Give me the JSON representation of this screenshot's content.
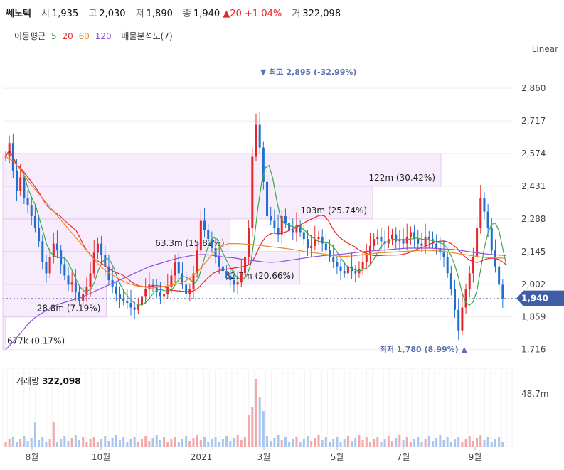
{
  "header": {
    "name": "쎄노텍",
    "open_label": "시",
    "open": "1,935",
    "high_label": "고",
    "high": "2,030",
    "low_label": "저",
    "low": "1,890",
    "close_label": "종",
    "close": "1,940",
    "change_arrow": "▲",
    "change": "20",
    "change_pct": "+1.04%",
    "volume_label": "거",
    "volume": "322,098"
  },
  "ma_legend": {
    "label": "이동평균",
    "periods": [
      "5",
      "20",
      "60",
      "120"
    ],
    "colors": [
      "#3aa84a",
      "#e8262a",
      "#f08a24",
      "#8a4fe0"
    ],
    "volume_profile": "매물분석도(7)"
  },
  "scale_mode": "Linear",
  "colors": {
    "up": "#e8262a",
    "down": "#1f6fd1",
    "profile": "#f3e6fa",
    "current_price_tag": "#3e5ea8"
  },
  "chart_data": {
    "type": "candlestick",
    "y_ticks": [
      2860,
      2717,
      2574,
      2431,
      2288,
      2145,
      2002,
      1859,
      1716
    ],
    "y_tick_labels": [
      "2,860",
      "2,717",
      "2,574",
      "2,431",
      "2,288",
      "2,145",
      "2,002",
      "1,859",
      "1,716"
    ],
    "ylim": [
      1690,
      2960
    ],
    "x_tick_labels": [
      "8월",
      "10월",
      "2021",
      "3월",
      "5월",
      "7월",
      "9월"
    ],
    "current_price": "1,940",
    "current_price_value": 1940,
    "high_annotation": "▼ 최고 2,895 (-32.99%)",
    "high_value": 2895,
    "low_annotation": "최저 1,780 (8.99%) ▲",
    "low_value": 1780,
    "volume_profile": [
      {
        "label": "677k (0.17%)",
        "from": 1716,
        "to": 1859,
        "volume_m": 0.677
      },
      {
        "label": "28.8m (7.19%)",
        "from": 1859,
        "to": 2002,
        "volume_m": 28.8
      },
      {
        "label": "82.7m (20.66%)",
        "from": 2002,
        "to": 2145,
        "volume_m": 82.7
      },
      {
        "label": "63.3m (15.82%)",
        "from": 2145,
        "to": 2288,
        "volume_m": 63.3
      },
      {
        "label": "103m (25.74%)",
        "from": 2288,
        "to": 2431,
        "volume_m": 103
      },
      {
        "label": "122m (30.42%)",
        "from": 2431,
        "to": 2574,
        "volume_m": 122
      },
      {
        "label": "",
        "from": 2574,
        "to": 2717,
        "volume_m": 0
      }
    ],
    "close_series": [
      2560,
      2620,
      2500,
      2410,
      2470,
      2380,
      2350,
      2300,
      2250,
      2190,
      2100,
      2050,
      2120,
      2180,
      2150,
      2090,
      2040,
      2000,
      2010,
      1970,
      1930,
      1960,
      1990,
      2050,
      2140,
      2180,
      2130,
      2080,
      2020,
      1990,
      1960,
      1940,
      1930,
      1920,
      1900,
      1890,
      1910,
      1950,
      1980,
      2000,
      1990,
      1970,
      1950,
      1960,
      1990,
      2040,
      2100,
      2050,
      2000,
      1960,
      1980,
      2050,
      2150,
      2280,
      2240,
      2200,
      2160,
      2120,
      2080,
      2060,
      2040,
      2020,
      2000,
      2010,
      2050,
      2120,
      2250,
      2560,
      2700,
      2600,
      2450,
      2300,
      2280,
      2250,
      2220,
      2300,
      2270,
      2240,
      2230,
      2260,
      2230,
      2200,
      2160,
      2170,
      2200,
      2210,
      2180,
      2150,
      2120,
      2100,
      2080,
      2060,
      2050,
      2080,
      2060,
      2050,
      2070,
      2100,
      2130,
      2170,
      2200,
      2210,
      2190,
      2180,
      2200,
      2220,
      2190,
      2200,
      2180,
      2210,
      2230,
      2200,
      2180,
      2170,
      2210,
      2200,
      2180,
      2160,
      2140,
      2120,
      2050,
      1980,
      1890,
      1800,
      1900,
      1980,
      2050,
      2120,
      2250,
      2380,
      2320,
      2250,
      2150,
      2080,
      2000,
      1940
    ],
    "ma120_series": [
      1716,
      1750,
      1790,
      1830,
      1860,
      1880,
      1900,
      1915,
      1925,
      1935,
      1945,
      1960,
      1975,
      1990,
      2005,
      2020,
      2035,
      2050,
      2065,
      2080,
      2090,
      2100,
      2110,
      2118,
      2125,
      2130,
      2132,
      2130,
      2125,
      2120,
      2118,
      2112,
      2108,
      2104,
      2100,
      2098,
      2100,
      2105,
      2110,
      2115,
      2120,
      2124,
      2128,
      2130,
      2133,
      2136,
      2140,
      2144,
      2147,
      2150,
      2152,
      2155,
      2158,
      2160,
      2160,
      2160,
      2160,
      2158,
      2156,
      2154,
      2150,
      2145,
      2140,
      2136,
      2132,
      2130,
      2128
    ],
    "ma60_series": [
      2560,
      2540,
      2500,
      2450,
      2410,
      2370,
      2330,
      2290,
      2250,
      2210,
      2170,
      2130,
      2090,
      2060,
      2040,
      2020,
      2005,
      1995,
      1990,
      1985,
      1990,
      1995,
      2000,
      2010,
      2030,
      2060,
      2100,
      2140,
      2170,
      2180,
      2180,
      2178,
      2176,
      2172,
      2168,
      2164,
      2160,
      2156,
      2150,
      2144,
      2140,
      2136,
      2130,
      2126,
      2124,
      2126,
      2130,
      2134,
      2138,
      2140,
      2142,
      2144,
      2146,
      2148,
      2150,
      2150,
      2148,
      2146,
      2140,
      2135,
      2130,
      2125,
      2120,
      2118,
      2117,
      2116
    ],
    "volume_m_max": 48.7,
    "volume_tick_label": "48.7m",
    "volume_label": "거래량",
    "volume_value": "322,098"
  }
}
